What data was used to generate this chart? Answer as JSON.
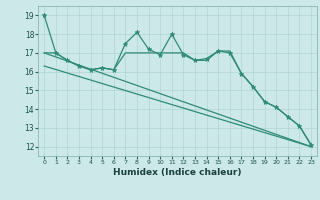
{
  "title": "",
  "xlabel": "Humidex (Indice chaleur)",
  "x": [
    0,
    1,
    2,
    3,
    4,
    5,
    6,
    7,
    8,
    9,
    10,
    11,
    12,
    13,
    14,
    15,
    16,
    17,
    18,
    19,
    20,
    21,
    22,
    23
  ],
  "line1": [
    19,
    17,
    16.6,
    16.3,
    16.1,
    16.2,
    16.1,
    17.5,
    18.1,
    17.2,
    16.9,
    18.0,
    16.9,
    16.6,
    16.7,
    17.1,
    17.0,
    15.9,
    15.2,
    14.4,
    14.1,
    13.6,
    13.1,
    12.1
  ],
  "line2": [
    17.0,
    17.0,
    16.6,
    16.3,
    16.1,
    16.2,
    16.1,
    17.0,
    17.0,
    17.0,
    17.0,
    17.0,
    17.0,
    16.6,
    16.6,
    17.1,
    17.1,
    15.9,
    15.2,
    14.4,
    14.1,
    13.6,
    13.1,
    12.1
  ],
  "line3_x": [
    0,
    23
  ],
  "line3_y": [
    17.0,
    12.0
  ],
  "line4_x": [
    0,
    23
  ],
  "line4_y": [
    16.3,
    12.0
  ],
  "ylim": [
    11.5,
    19.5
  ],
  "xlim": [
    -0.5,
    23.5
  ],
  "yticks": [
    12,
    13,
    14,
    15,
    16,
    17,
    18,
    19
  ],
  "color": "#2e8b74",
  "bg_color": "#cde8e8",
  "grid_color": "#afd4d4"
}
